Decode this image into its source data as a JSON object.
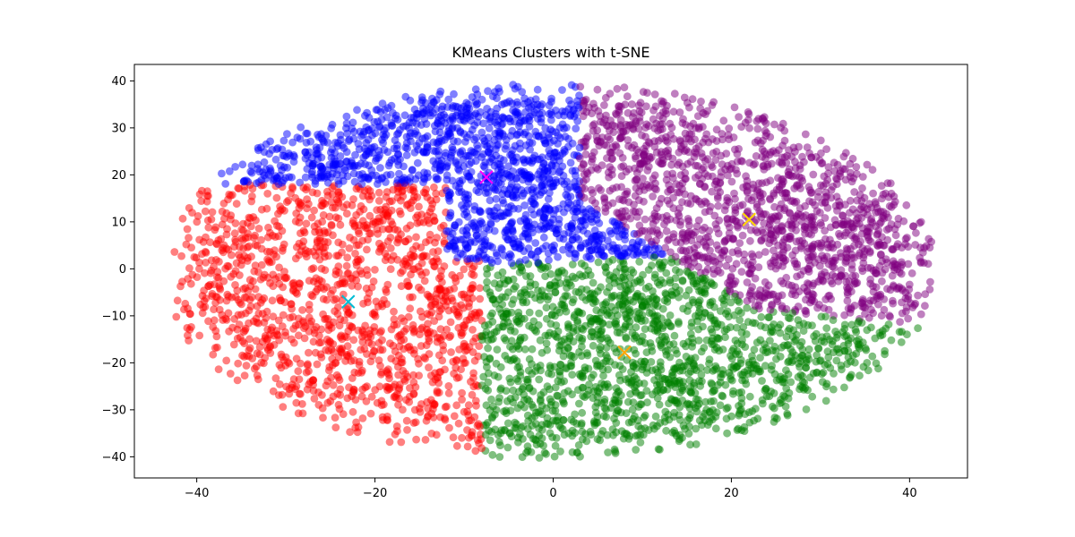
{
  "chart_data": {
    "type": "scatter",
    "title": "KMeans Clusters with t-SNE",
    "xlabel": "",
    "ylabel": "",
    "xlim": [
      -47,
      46.5
    ],
    "ylim": [
      -44.5,
      43.5
    ],
    "x_ticks": [
      -40,
      -20,
      0,
      20,
      40
    ],
    "y_ticks": [
      -40,
      -30,
      -20,
      -10,
      0,
      10,
      20,
      30,
      40
    ],
    "x_tick_labels": [
      "−40",
      "−20",
      "0",
      "20",
      "40"
    ],
    "y_tick_labels": [
      "−40",
      "−30",
      "−20",
      "−10",
      "0",
      "10",
      "20",
      "30",
      "40"
    ],
    "grid": false,
    "legend": "none",
    "point_alpha": 0.5,
    "series": [
      {
        "color": "#ff0000",
        "center": [
          -25,
          -8
        ],
        "region": {
          "x": [
            -43,
            -10
          ],
          "y": [
            -36,
            18
          ],
          "constraint": "x < -8 and y <= 18 and (x < -12 or y < 1.5*x + 22)"
        },
        "n_points": 1300
      },
      {
        "color": "#0000ff",
        "center": [
          -3,
          20
        ],
        "region": {
          "x": [
            -37,
            14
          ],
          "y": [
            -1,
            39
          ],
          "constraint": "y > 0 and not red and not purple"
        },
        "n_points": 1300
      },
      {
        "color": "#800080",
        "center": [
          24,
          10
        ],
        "region": {
          "x": [
            4,
            42
          ],
          "y": [
            -13,
            34
          ],
          "constraint": "y > -1.15*x + 18 and y > -0.2*x - 4"
        },
        "n_points": 1400
      },
      {
        "color": "#008000",
        "center": [
          8,
          -18
        ],
        "region": {
          "x": [
            -12,
            34
          ],
          "y": [
            -41,
            2
          ],
          "constraint": "not red and not purple and y < 2"
        },
        "n_points": 1500
      }
    ],
    "centroids": [
      {
        "x": -7.5,
        "y": 19.5,
        "color": "#ff00ff",
        "marker": "x"
      },
      {
        "x": 22.0,
        "y": 10.5,
        "color": "#ffd700",
        "marker": "x"
      },
      {
        "x": -23.0,
        "y": -7.0,
        "color": "#00bcd4",
        "marker": "x"
      },
      {
        "x": 8.0,
        "y": -17.8,
        "color": "#ffa500",
        "marker": "x"
      }
    ]
  }
}
